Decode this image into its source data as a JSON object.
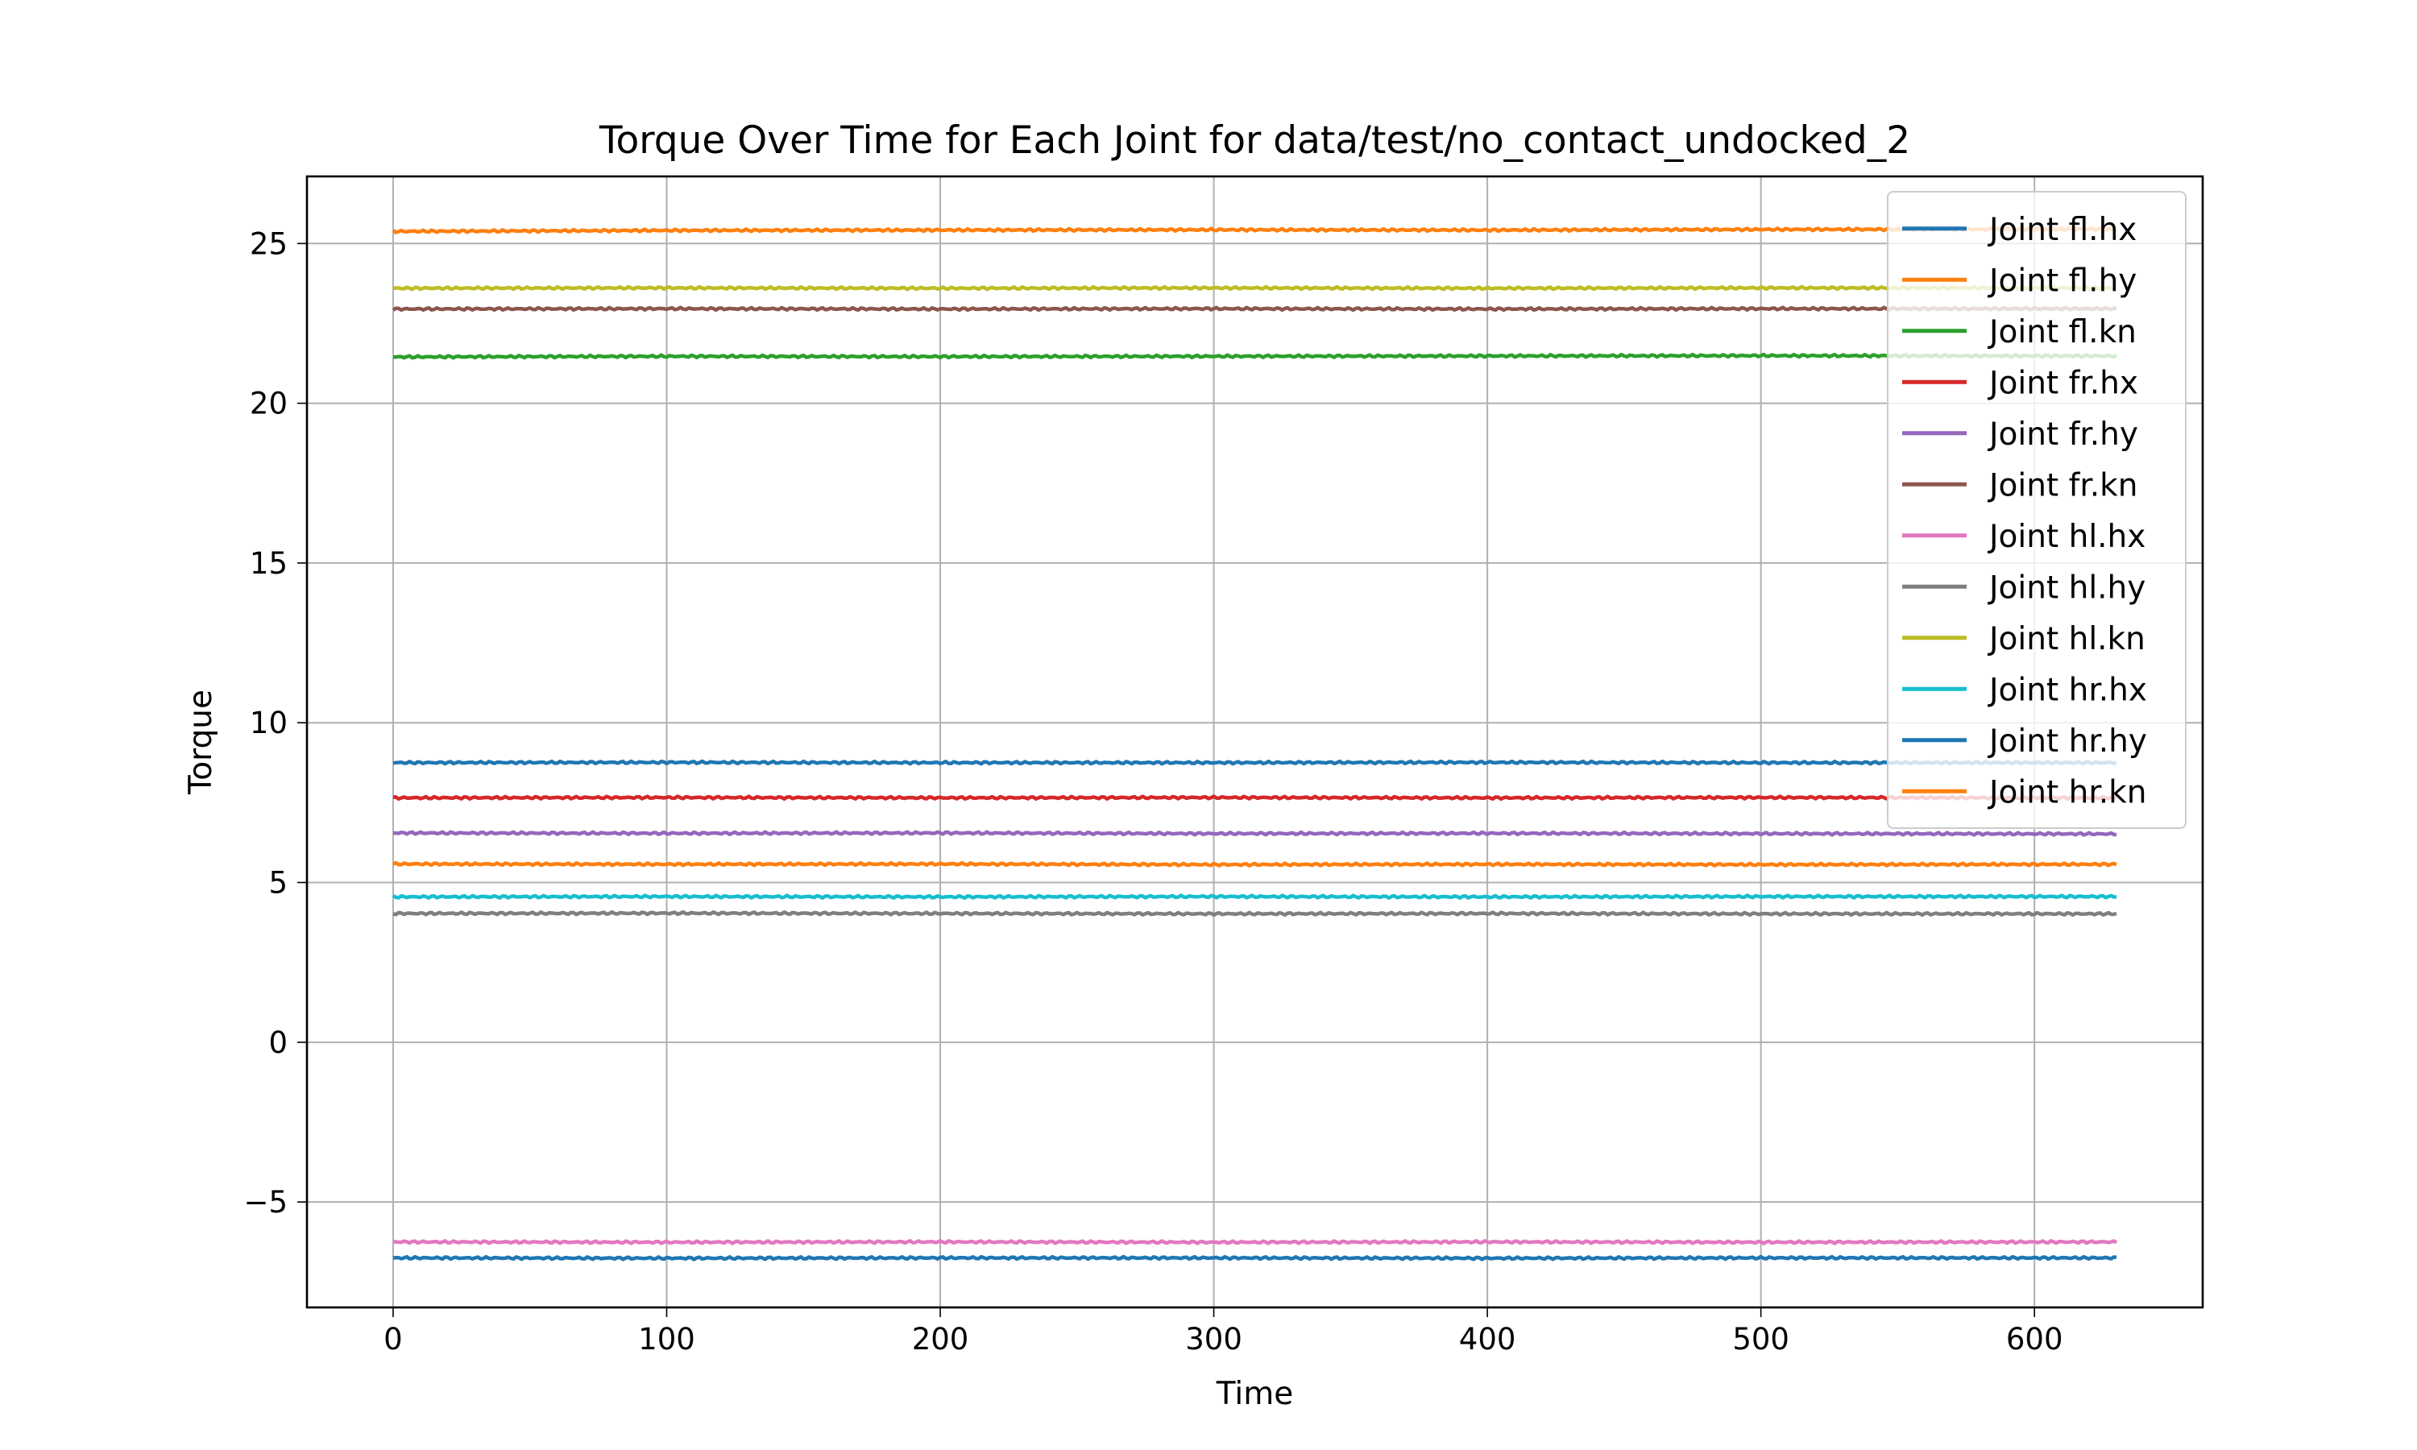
{
  "chart_data": {
    "type": "line",
    "title": "Torque Over Time for Each Joint for data/test/no_contact_undocked_2",
    "xlabel": "Time",
    "ylabel": "Torque",
    "xlim": [
      -31.5,
      661.5
    ],
    "ylim": [
      -8.3,
      27.1
    ],
    "xticks": [
      0,
      100,
      200,
      300,
      400,
      500,
      600
    ],
    "yticks": [
      -5,
      0,
      5,
      10,
      15,
      20,
      25
    ],
    "ytick_labels": [
      "−5",
      "0",
      "5",
      "10",
      "15",
      "20",
      "25"
    ],
    "grid": true,
    "legend_position": "top-right",
    "x_range": [
      0,
      630
    ],
    "series": [
      {
        "name": "Joint fl.hx",
        "color": "#1f77b4",
        "x": [
          0,
          100,
          200,
          300,
          400,
          500,
          630
        ],
        "values": [
          -6.75,
          -6.76,
          -6.75,
          -6.75,
          -6.76,
          -6.75,
          -6.75
        ]
      },
      {
        "name": "Joint fl.hy",
        "color": "#ff7f0e",
        "x": [
          0,
          100,
          200,
          300,
          400,
          500,
          630
        ],
        "values": [
          25.38,
          25.41,
          25.42,
          25.43,
          25.42,
          25.44,
          25.45
        ]
      },
      {
        "name": "Joint fl.kn",
        "color": "#2ca02c",
        "x": [
          0,
          100,
          200,
          300,
          400,
          500,
          630
        ],
        "values": [
          21.45,
          21.47,
          21.46,
          21.47,
          21.48,
          21.49,
          21.48
        ]
      },
      {
        "name": "Joint fr.hx",
        "color": "#d62728",
        "x": [
          0,
          100,
          200,
          300,
          400,
          500,
          630
        ],
        "values": [
          7.65,
          7.66,
          7.65,
          7.66,
          7.65,
          7.66,
          7.65
        ]
      },
      {
        "name": "Joint fr.hy",
        "color": "#9467bd",
        "x": [
          0,
          100,
          200,
          300,
          400,
          500,
          630
        ],
        "values": [
          6.55,
          6.54,
          6.55,
          6.53,
          6.54,
          6.53,
          6.52
        ]
      },
      {
        "name": "Joint fr.kn",
        "color": "#8c564b",
        "x": [
          0,
          100,
          200,
          300,
          400,
          500,
          630
        ],
        "values": [
          22.95,
          22.96,
          22.95,
          22.96,
          22.95,
          22.96,
          22.96
        ]
      },
      {
        "name": "Joint hl.hx",
        "color": "#e377c2",
        "x": [
          0,
          100,
          200,
          300,
          400,
          500,
          630
        ],
        "values": [
          -6.25,
          -6.26,
          -6.25,
          -6.26,
          -6.25,
          -6.26,
          -6.25
        ]
      },
      {
        "name": "Joint hl.hy",
        "color": "#7f7f7f",
        "x": [
          0,
          100,
          200,
          300,
          400,
          500,
          630
        ],
        "values": [
          4.03,
          4.04,
          4.03,
          4.02,
          4.03,
          4.02,
          4.02
        ]
      },
      {
        "name": "Joint hl.kn",
        "color": "#bcbd22",
        "x": [
          0,
          100,
          200,
          300,
          400,
          500,
          630
        ],
        "values": [
          23.6,
          23.61,
          23.6,
          23.61,
          23.6,
          23.61,
          23.61
        ]
      },
      {
        "name": "Joint hr.hx",
        "color": "#17becf",
        "x": [
          0,
          100,
          200,
          300,
          400,
          500,
          630
        ],
        "values": [
          4.55,
          4.56,
          4.55,
          4.56,
          4.55,
          4.56,
          4.56
        ]
      },
      {
        "name": "Joint hr.hy",
        "color": "#1f77b4",
        "x": [
          0,
          100,
          200,
          300,
          400,
          500,
          630
        ],
        "values": [
          8.75,
          8.76,
          8.75,
          8.75,
          8.76,
          8.75,
          8.75
        ]
      },
      {
        "name": "Joint hr.kn",
        "color": "#ff7f0e",
        "x": [
          0,
          100,
          200,
          300,
          400,
          500,
          630
        ],
        "values": [
          5.58,
          5.57,
          5.58,
          5.56,
          5.57,
          5.56,
          5.57
        ]
      }
    ]
  }
}
